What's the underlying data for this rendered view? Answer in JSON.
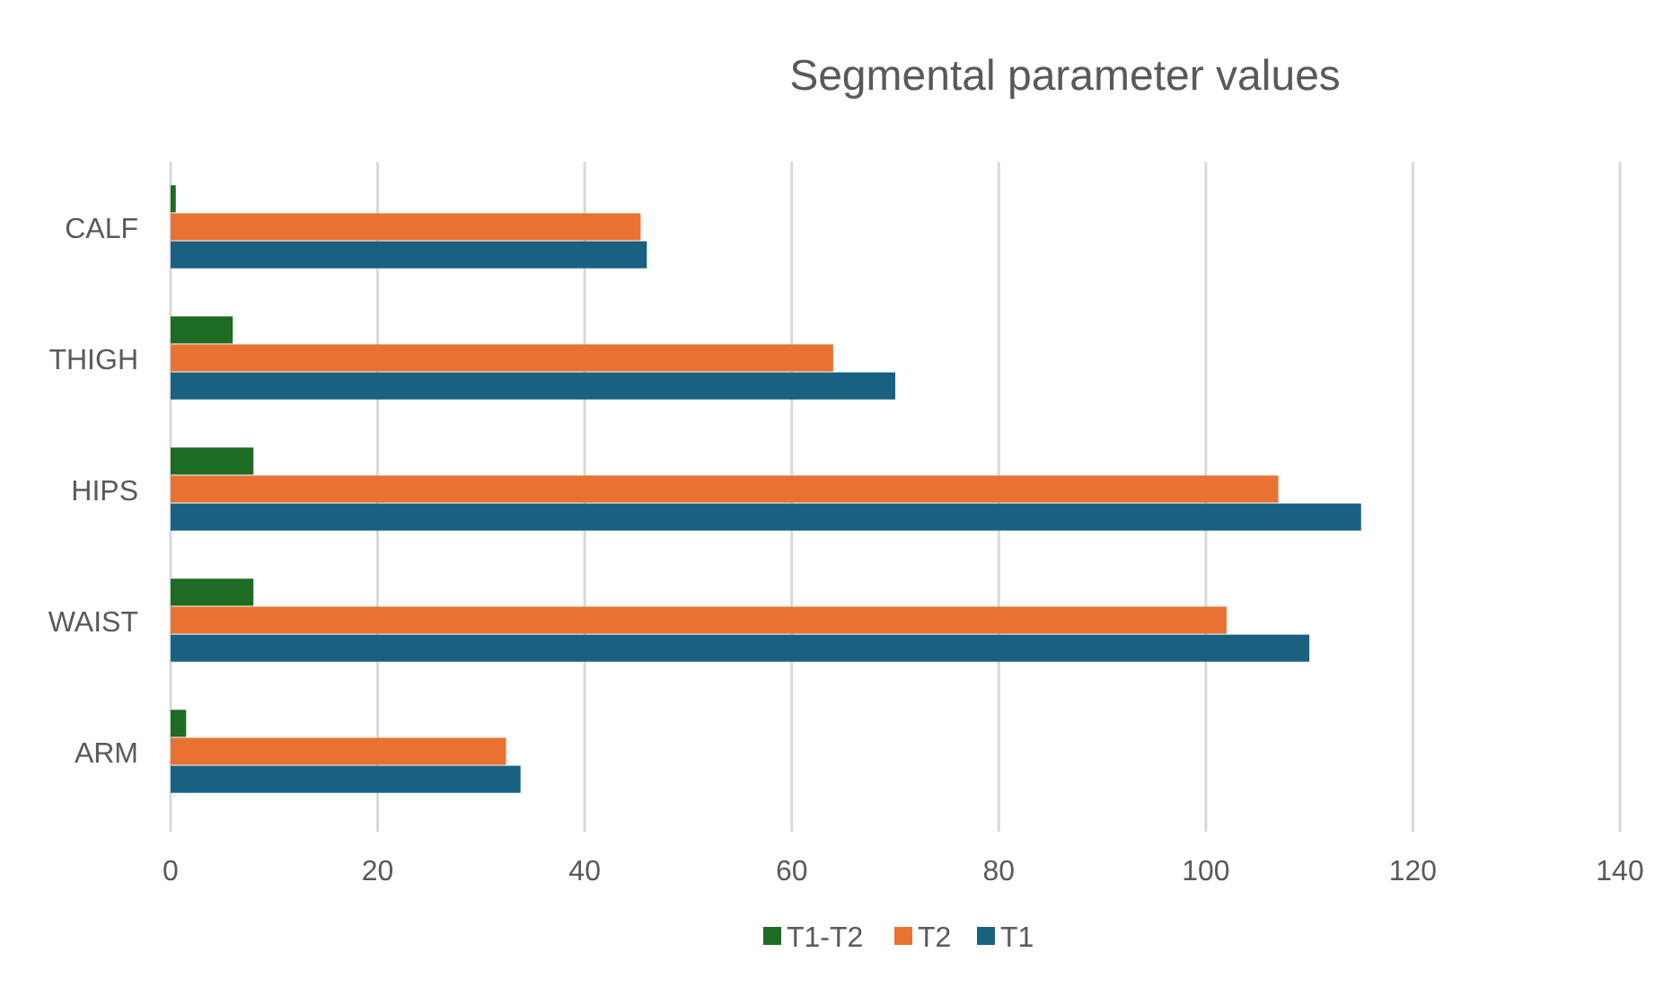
{
  "chart_data": {
    "type": "bar",
    "orientation": "horizontal",
    "title": "Segmental parameter values",
    "categories": [
      "CALF",
      "THIGH",
      "HIPS",
      "WAIST",
      "ARM"
    ],
    "series": [
      {
        "name": "T1-T2",
        "color": "#1e6b24",
        "values": [
          0.5,
          6,
          8,
          8,
          1.5
        ]
      },
      {
        "name": "T2",
        "color": "#e97132",
        "values": [
          45.4,
          64,
          107,
          102,
          32.4
        ]
      },
      {
        "name": "T1",
        "color": "#196180",
        "values": [
          46,
          70,
          115,
          110,
          33.8
        ]
      }
    ],
    "xlim": [
      0,
      140
    ],
    "xticks": [
      0,
      20,
      40,
      60,
      80,
      100,
      120,
      140
    ],
    "grid": "x",
    "legend": "bottom"
  }
}
